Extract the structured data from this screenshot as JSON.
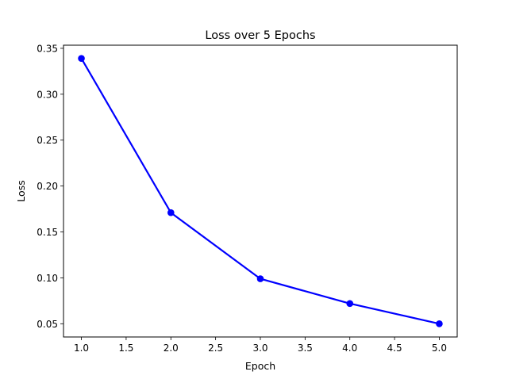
{
  "chart_data": {
    "type": "line",
    "title": "Loss over 5 Epochs",
    "xlabel": "Epoch",
    "ylabel": "Loss",
    "x": [
      1,
      2,
      3,
      4,
      5
    ],
    "series": [
      {
        "values": [
          0.339,
          0.171,
          0.099,
          0.072,
          0.05
        ],
        "color": "#0000ff",
        "marker": "circle"
      }
    ],
    "xlim": [
      0.8,
      5.2
    ],
    "ylim": [
      0.0356,
      0.3534
    ],
    "xticks": [
      "1.0",
      "1.5",
      "2.0",
      "2.5",
      "3.0",
      "3.5",
      "4.0",
      "4.5",
      "5.0"
    ],
    "yticks": [
      "0.05",
      "0.10",
      "0.15",
      "0.20",
      "0.25",
      "0.30",
      "0.35"
    ],
    "grid": false,
    "legend": false
  }
}
